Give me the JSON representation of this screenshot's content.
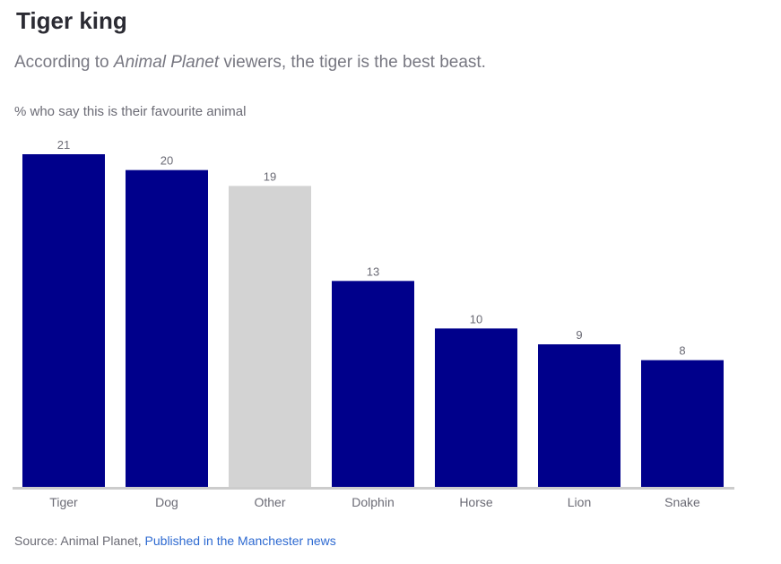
{
  "title": "Tiger king",
  "subtitle": {
    "before": "According to ",
    "emphasis": "Animal Planet",
    "after": " viewers, the tiger is the best beast."
  },
  "source": {
    "prefix": "Source: Animal Planet, ",
    "link_text": "Published in the Manchester news"
  },
  "colors": {
    "bar_primary": "#00008b",
    "bar_highlight": "#d3d3d3",
    "axis": "#cccccc",
    "label": "#6b6b75"
  },
  "chart_data": {
    "type": "bar",
    "title": "Tiger king",
    "ylabel": "% who say this is their favourite animal",
    "xlabel": "",
    "categories": [
      "Tiger",
      "Dog",
      "Other",
      "Dolphin",
      "Horse",
      "Lion",
      "Snake"
    ],
    "values": [
      21,
      20,
      19,
      13,
      10,
      9,
      8
    ],
    "highlight": [
      "Other"
    ],
    "data_labels": true,
    "ylim": [
      0,
      21
    ],
    "grid": false,
    "legend": "none"
  }
}
